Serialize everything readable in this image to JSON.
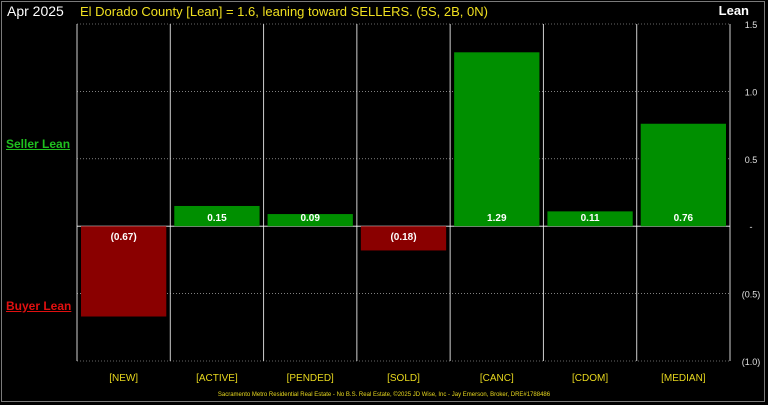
{
  "header": {
    "date": "Apr 2025",
    "title": "El Dorado County [Lean] = 1.6, leaning toward SELLERS. (5S, 2B, 0N)",
    "right_label": "Lean"
  },
  "side_labels": {
    "seller": "Seller Lean",
    "buyer": "Buyer Lean"
  },
  "footer": "Sacramento Metro Residential Real Estate - No B.S. Real Estate, ©2025 JD Wise, Inc - Jay Emerson, Broker, DRE#1788486",
  "colors": {
    "positive": "#008f00",
    "negative": "#8a0000",
    "axis_text": "#e8d81e",
    "gridline": "#ffffff"
  },
  "chart_data": {
    "type": "bar",
    "categories": [
      "[NEW]",
      "[ACTIVE]",
      "[PENDED]",
      "[SOLD]",
      "[CANC]",
      "[CDOM]",
      "[MEDIAN]"
    ],
    "values": [
      -0.67,
      0.15,
      0.09,
      -0.18,
      1.29,
      0.11,
      0.76
    ],
    "data_labels": [
      "(0.67)",
      "0.15",
      "0.09",
      "(0.18)",
      "1.29",
      "0.11",
      "0.76"
    ],
    "ylim": [
      -1.0,
      1.5
    ],
    "yticks": [
      1.5,
      1.0,
      0.5,
      0,
      -0.5,
      -1.0
    ],
    "ytick_labels": [
      "1.5",
      "1.0",
      "0.5",
      "-",
      "(0.5)",
      "(1.0)"
    ],
    "y_axis_position": "right",
    "grid": true
  }
}
